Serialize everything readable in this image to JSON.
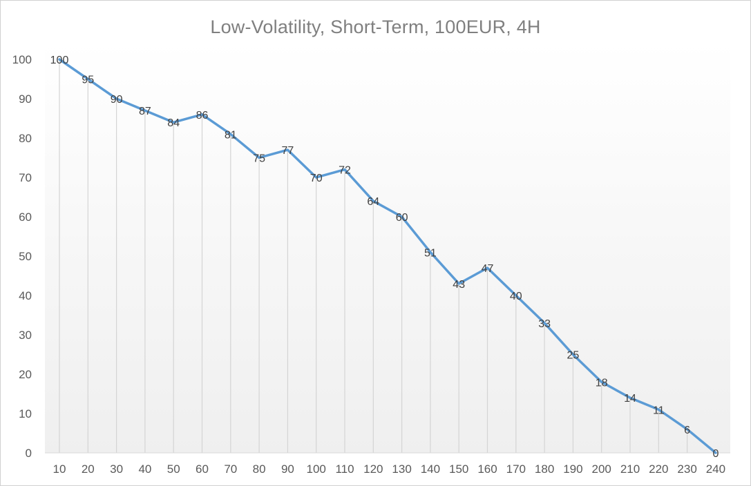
{
  "chart_data": {
    "type": "line",
    "title": "Low-Volatility,  Short-Term,  100EUR,  4H",
    "xlabel": "",
    "ylabel": "",
    "x": [
      10,
      20,
      30,
      40,
      50,
      60,
      70,
      80,
      90,
      100,
      110,
      120,
      130,
      140,
      150,
      160,
      170,
      180,
      190,
      200,
      210,
      220,
      230,
      240
    ],
    "series": [
      {
        "values": [
          100,
          95,
          90,
          87,
          84,
          86,
          81,
          75,
          77,
          70,
          72,
          64,
          60,
          51,
          43,
          47,
          40,
          33,
          25,
          18,
          14,
          11,
          6,
          0
        ],
        "color": "#5b9bd5"
      }
    ],
    "ylim": [
      0,
      100
    ],
    "yticks": [
      0,
      10,
      20,
      30,
      40,
      50,
      60,
      70,
      80,
      90,
      100
    ],
    "data_labels": true,
    "drop_lines": true,
    "grid": false,
    "legend": "none",
    "plot_background": "gradient-white-to-light-gray"
  }
}
